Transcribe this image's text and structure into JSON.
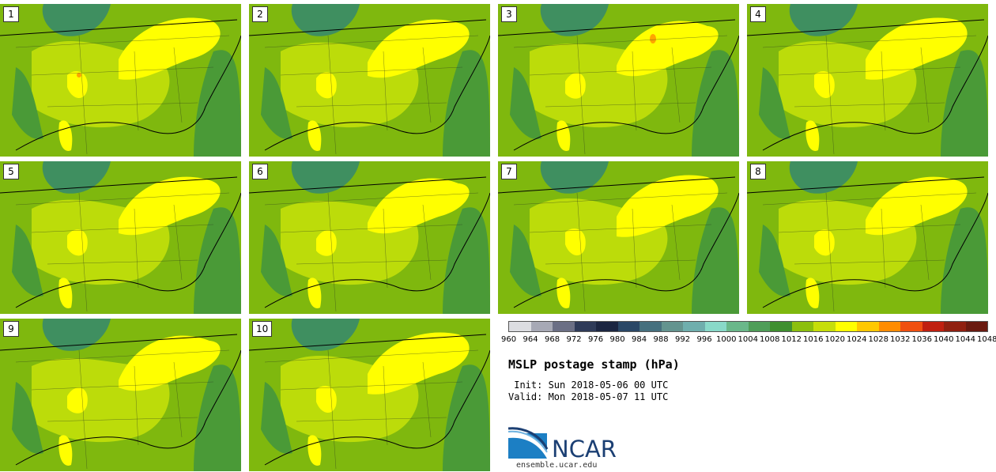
{
  "map_panels": [
    {
      "label": "1"
    },
    {
      "label": "2"
    },
    {
      "label": "3"
    },
    {
      "label": "4"
    },
    {
      "label": "5"
    },
    {
      "label": "6"
    },
    {
      "label": "7"
    },
    {
      "label": "8"
    },
    {
      "label": "9"
    },
    {
      "label": "10"
    }
  ],
  "colorbar": {
    "colors": [
      "#dcdde1",
      "#a7a9b5",
      "#6b6f85",
      "#2e3a58",
      "#1b2541",
      "#2a4766",
      "#46707e",
      "#64948f",
      "#6faead",
      "#89d9c9",
      "#6ab88a",
      "#4f9e58",
      "#3f8f2f",
      "#8cbf0e",
      "#c6de0a",
      "#ffff00",
      "#ffc800",
      "#ff8c00",
      "#f05010",
      "#c02010",
      "#902010",
      "#6a1a10"
    ],
    "ticks": [
      "960",
      "964",
      "968",
      "972",
      "976",
      "980",
      "984",
      "988",
      "992",
      "996",
      "1000",
      "1004",
      "1008",
      "1012",
      "1016",
      "1020",
      "1024",
      "1028",
      "1032",
      "1036",
      "1040",
      "1044",
      "1048"
    ]
  },
  "title": "MSLP postage stamp (hPa)",
  "init_line": " Init: Sun 2018-05-06 00 UTC",
  "valid_line": "Valid: Mon 2018-05-07 11 UTC",
  "logo": {
    "text": "NCAR",
    "color": "#1b3f73"
  },
  "website": "ensemble.ucar.edu",
  "field_colors": {
    "low_green": "#4a9a37",
    "mid_green": "#7fb80e",
    "light_green": "#bcdc0a",
    "yellow": "#ffff00",
    "orange": "#ffa500",
    "teal": "#3f8f60"
  }
}
